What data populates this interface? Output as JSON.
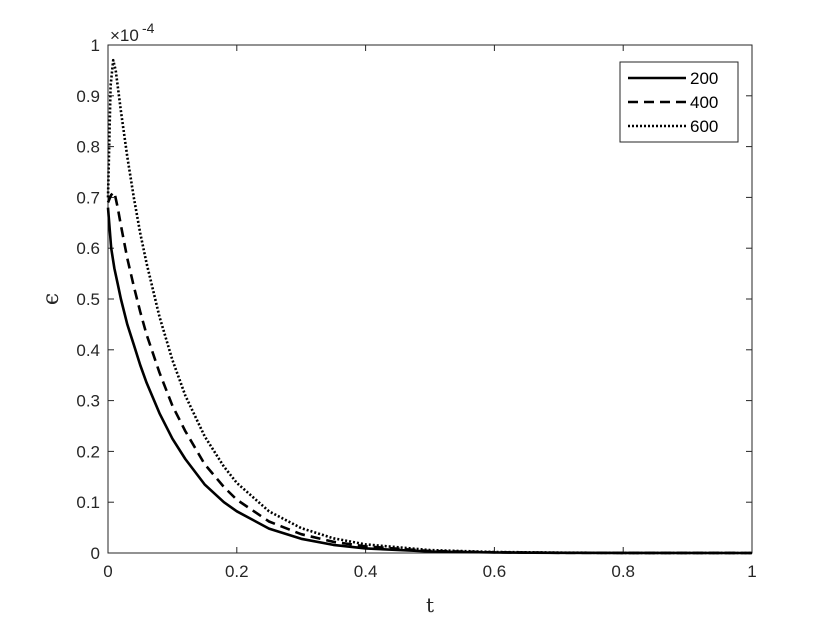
{
  "chart_data": {
    "type": "line",
    "title": "",
    "xlabel": "t",
    "ylabel": "ϵ",
    "xlim": [
      0,
      1
    ],
    "ylim": [
      0,
      1
    ],
    "y_exponent_label": "×10",
    "y_exponent_power": "-4",
    "x_ticks": [
      0,
      0.2,
      0.4,
      0.6,
      0.8,
      1
    ],
    "x_tick_labels": [
      "0",
      "0.2",
      "0.4",
      "0.6",
      "0.8",
      "1"
    ],
    "y_ticks": [
      0,
      0.1,
      0.2,
      0.3,
      0.4,
      0.5,
      0.6,
      0.7,
      0.8,
      0.9,
      1
    ],
    "y_tick_labels": [
      "0",
      "0.1",
      "0.2",
      "0.3",
      "0.4",
      "0.5",
      "0.6",
      "0.7",
      "0.8",
      "0.9",
      "1"
    ],
    "grid": false,
    "legend_position": "top-right",
    "series": [
      {
        "name": "200",
        "line_style": "solid",
        "color": "#000000",
        "x": [
          0,
          0.005,
          0.01,
          0.015,
          0.02,
          0.03,
          0.04,
          0.05,
          0.06,
          0.08,
          0.1,
          0.12,
          0.15,
          0.18,
          0.2,
          0.25,
          0.3,
          0.35,
          0.4,
          0.5,
          0.6,
          0.7,
          0.8,
          1.0
        ],
        "y": [
          0.68,
          0.6,
          0.56,
          0.53,
          0.5,
          0.45,
          0.41,
          0.37,
          0.335,
          0.275,
          0.225,
          0.185,
          0.135,
          0.1,
          0.082,
          0.048,
          0.028,
          0.016,
          0.009,
          0.003,
          0.001,
          0.0004,
          0.0001,
          0
        ]
      },
      {
        "name": "400",
        "line_style": "dashed",
        "color": "#000000",
        "x": [
          0,
          0.005,
          0.01,
          0.015,
          0.02,
          0.03,
          0.04,
          0.05,
          0.06,
          0.08,
          0.1,
          0.12,
          0.15,
          0.18,
          0.2,
          0.25,
          0.3,
          0.35,
          0.4,
          0.5,
          0.6,
          0.7,
          0.8,
          1.0
        ],
        "y": [
          0.69,
          0.705,
          0.71,
          0.68,
          0.645,
          0.58,
          0.525,
          0.475,
          0.43,
          0.355,
          0.29,
          0.24,
          0.175,
          0.13,
          0.105,
          0.062,
          0.037,
          0.022,
          0.013,
          0.004,
          0.0013,
          0.0004,
          0.0001,
          0
        ]
      },
      {
        "name": "600",
        "line_style": "dotted",
        "color": "#000000",
        "x": [
          0,
          0.004,
          0.008,
          0.012,
          0.016,
          0.02,
          0.03,
          0.04,
          0.05,
          0.06,
          0.08,
          0.1,
          0.12,
          0.15,
          0.18,
          0.2,
          0.25,
          0.3,
          0.35,
          0.4,
          0.5,
          0.6,
          0.7,
          0.8,
          1.0
        ],
        "y": [
          0.7,
          0.92,
          0.97,
          0.95,
          0.91,
          0.87,
          0.78,
          0.7,
          0.63,
          0.57,
          0.465,
          0.38,
          0.31,
          0.23,
          0.17,
          0.138,
          0.082,
          0.049,
          0.029,
          0.017,
          0.0058,
          0.002,
          0.0007,
          0.0002,
          0
        ]
      }
    ]
  }
}
